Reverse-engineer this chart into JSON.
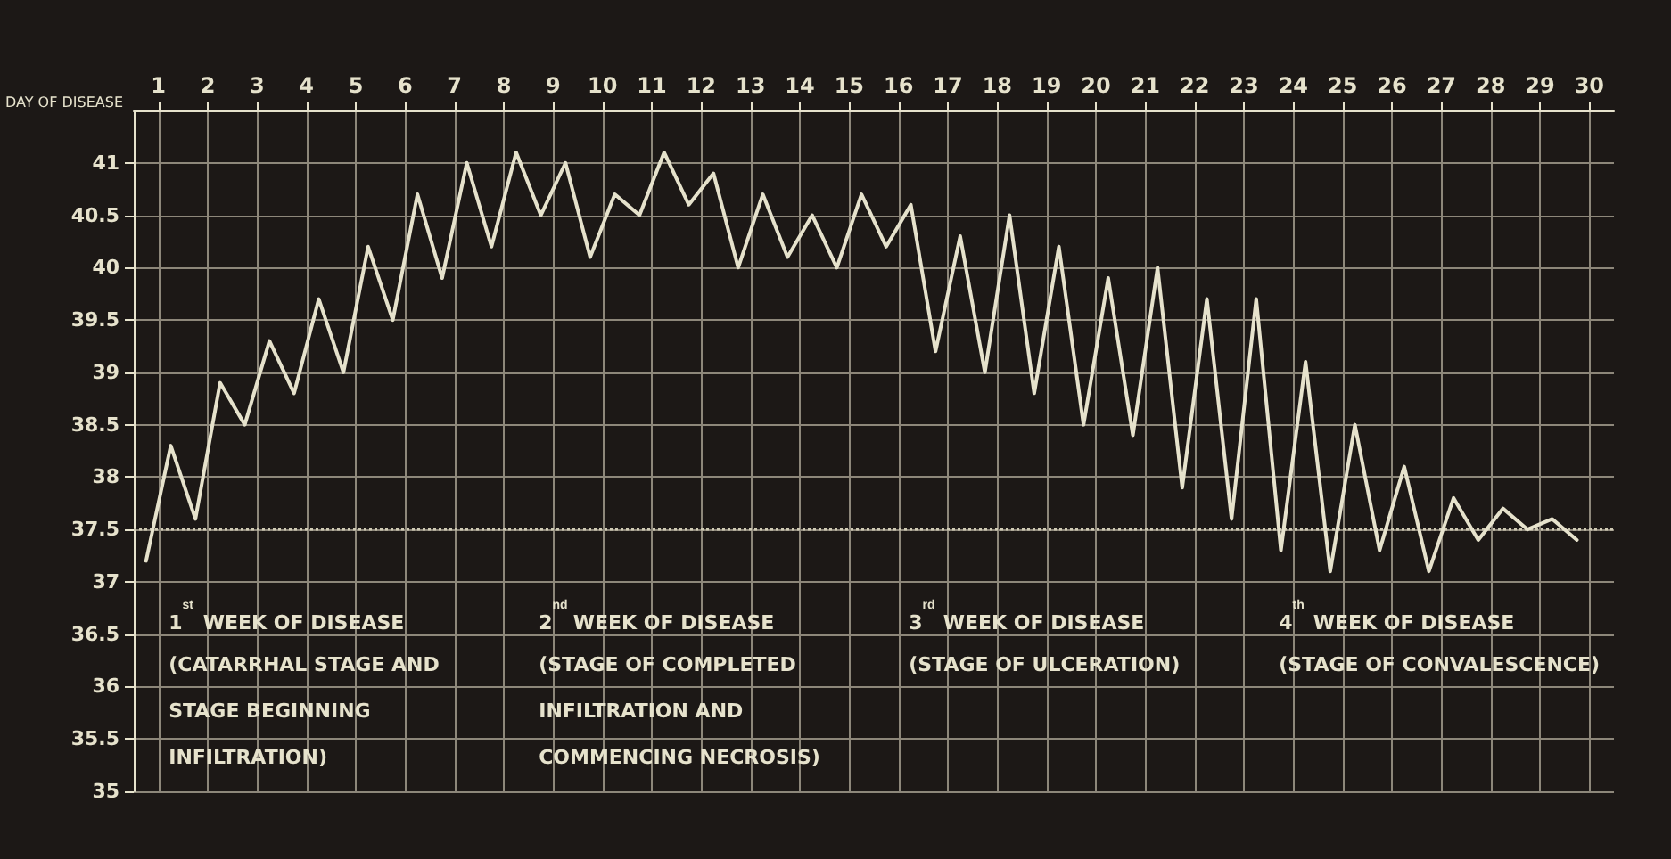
{
  "chart_data": {
    "type": "line",
    "xlabel": "DAY OF DISEASE",
    "x": [
      0.75,
      1.25,
      1.75,
      2.25,
      2.75,
      3.25,
      3.75,
      4.25,
      4.75,
      5.25,
      5.75,
      6.25,
      6.75,
      7.25,
      7.75,
      8.25,
      8.75,
      9.25,
      9.75,
      10.25,
      10.75,
      11.25,
      11.75,
      12.25,
      12.75,
      13.25,
      13.75,
      14.25,
      14.75,
      15.25,
      15.75,
      16.25,
      16.75,
      17.25,
      17.75,
      18.25,
      18.75,
      19.25,
      19.75,
      20.25,
      20.75,
      21.25,
      21.75,
      22.25,
      22.75,
      23.25,
      23.75,
      24.25,
      24.75,
      25.25,
      25.75,
      26.25,
      26.75,
      27.25,
      27.75,
      28.25,
      28.75,
      29.25,
      29.75
    ],
    "series": [
      {
        "color": "#e6e2cc",
        "values": [
          37.2,
          38.3,
          37.6,
          38.9,
          38.5,
          39.3,
          38.8,
          39.7,
          39.0,
          40.2,
          39.5,
          40.7,
          39.9,
          41.0,
          40.2,
          41.1,
          40.5,
          41.0,
          40.1,
          40.7,
          40.5,
          41.1,
          40.6,
          40.9,
          40.0,
          40.7,
          40.1,
          40.5,
          40.0,
          40.7,
          40.2,
          40.6,
          39.2,
          40.3,
          39.0,
          40.5,
          38.8,
          40.2,
          38.5,
          39.9,
          38.4,
          40.0,
          37.9,
          39.7,
          37.6,
          39.7,
          37.3,
          39.1,
          37.1,
          38.5,
          37.3,
          38.1,
          37.1,
          37.8,
          37.4,
          37.7,
          37.5,
          37.6,
          37.4
        ]
      }
    ],
    "xlim": [
      0.5,
      30.5
    ],
    "xticks": [
      1,
      2,
      3,
      4,
      5,
      6,
      7,
      8,
      9,
      10,
      11,
      12,
      13,
      14,
      15,
      16,
      17,
      18,
      19,
      20,
      21,
      22,
      23,
      24,
      25,
      26,
      27,
      28,
      29,
      30
    ],
    "ylim": [
      35,
      41.5
    ],
    "yticks": [
      35,
      35.5,
      36,
      36.5,
      37,
      37.5,
      38,
      38.5,
      39,
      39.5,
      40,
      40.5,
      41
    ],
    "grid": true,
    "marker": "none",
    "line_style": "solid",
    "ref_lines": [
      {
        "axis": "y",
        "value": 37.5,
        "line_style": "dotted",
        "color": "#cfcab4"
      }
    ],
    "annotations": [
      "1$^{st}$ WEEK OF DISEASE",
      "(CATARRHAL STAGE AND STAGE BEGINNING INFILTRATION)",
      "2$^{nd}$ WEEK OF DISEASE",
      "(STAGE OF COMPLETED INFILTRATION AND COMMENCING NECROSIS)",
      "3$^{rd}$ WEEK OF DISEASE",
      "(STAGE OF ULCERATION)",
      "4$^{th}$ WEEK OF DISEASE",
      "(STAGE OF CONVALESCENCE)"
    ]
  }
}
